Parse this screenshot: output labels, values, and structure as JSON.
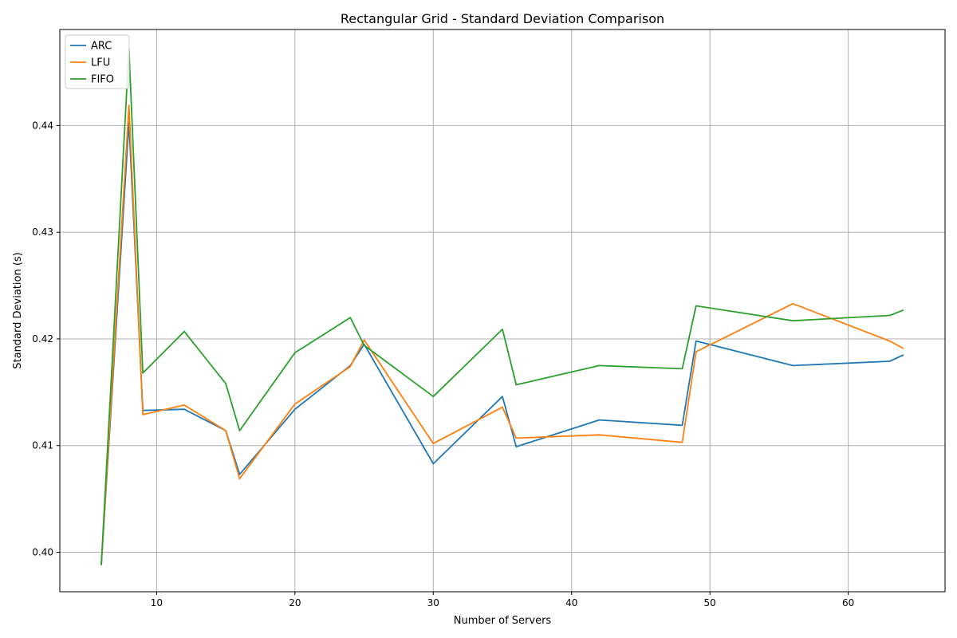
{
  "chart_data": {
    "type": "line",
    "title": "Rectangular Grid - Standard Deviation Comparison",
    "xlabel": "Number of Servers",
    "ylabel": "Standard Deviation (s)",
    "xlim": [
      3,
      67
    ],
    "ylim": [
      0.3963,
      0.449
    ],
    "xticks": [
      10,
      20,
      30,
      40,
      50,
      60
    ],
    "yticks": [
      0.4,
      0.41,
      0.42,
      0.43,
      0.44
    ],
    "grid": true,
    "legend_position": "top-left",
    "x": [
      6,
      8,
      9,
      12,
      15,
      16,
      20,
      24,
      25,
      30,
      35,
      36,
      42,
      48,
      49,
      56,
      63,
      64
    ],
    "series": [
      {
        "name": "ARC",
        "color": "#1f77b4",
        "values": [
          0.3988,
          0.4403,
          0.4133,
          0.4134,
          0.4114,
          0.4073,
          0.4134,
          0.4175,
          0.4195,
          0.4083,
          0.4146,
          0.4099,
          0.4124,
          0.4119,
          0.4198,
          0.4175,
          0.4179,
          0.4185
        ]
      },
      {
        "name": "LFU",
        "color": "#ff7f0e",
        "values": [
          0.3988,
          0.4419,
          0.4129,
          0.4138,
          0.4114,
          0.4069,
          0.4139,
          0.4174,
          0.4199,
          0.4102,
          0.4136,
          0.4107,
          0.411,
          0.4103,
          0.4188,
          0.4233,
          0.4198,
          0.4191
        ]
      },
      {
        "name": "FIFO",
        "color": "#2ca02c",
        "values": [
          0.3988,
          0.4472,
          0.4168,
          0.4207,
          0.4158,
          0.4114,
          0.4187,
          0.422,
          0.4194,
          0.4146,
          0.4209,
          0.4157,
          0.4175,
          0.4172,
          0.4231,
          0.4217,
          0.4222,
          0.4227
        ]
      }
    ]
  }
}
